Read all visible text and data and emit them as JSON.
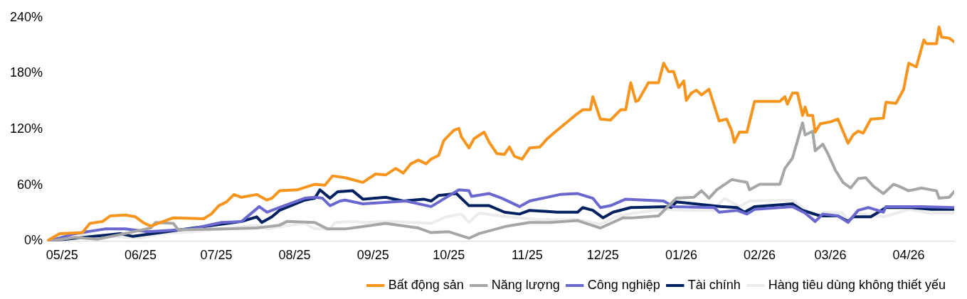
{
  "chart_data": {
    "type": "line",
    "xlim": [
      "2025-04-25",
      "2026-04-19"
    ],
    "xticks": [
      {
        "value": "2025-05",
        "label": "05/25"
      },
      {
        "value": "2025-06",
        "label": "06/25"
      },
      {
        "value": "2025-07",
        "label": "07/25"
      },
      {
        "value": "2025-08",
        "label": "08/25"
      },
      {
        "value": "2025-09",
        "label": "09/25"
      },
      {
        "value": "2025-10",
        "label": "10/25"
      },
      {
        "value": "2025-11",
        "label": "11/25"
      },
      {
        "value": "2025-12",
        "label": "12/25"
      },
      {
        "value": "2026-01",
        "label": "01/26"
      },
      {
        "value": "2026-02",
        "label": "02/26"
      },
      {
        "value": "2026-03",
        "label": "03/26"
      },
      {
        "value": "2026-04",
        "label": "04/26"
      }
    ],
    "ylim": [
      0,
      240
    ],
    "yticks": [
      {
        "value": 0,
        "label": "0%"
      },
      {
        "value": 60,
        "label": "60%"
      },
      {
        "value": 120,
        "label": "120%"
      },
      {
        "value": 180,
        "label": "180%"
      },
      {
        "value": 240,
        "label": "240%"
      }
    ],
    "grid": false,
    "legend": "bottom",
    "marker": "none",
    "line_style": "solid",
    "series": [
      {
        "name": "Bất động sản",
        "color": "#f7941d",
        "x": [
          "2025-04-25",
          "2025-04-30",
          "2025-05-09",
          "2025-05-12",
          "2025-05-17",
          "2025-05-20",
          "2025-05-26",
          "2025-05-30",
          "2025-06-02",
          "2025-06-05",
          "2025-06-09",
          "2025-06-14",
          "2025-06-26",
          "2025-06-29",
          "2025-07-02",
          "2025-07-05",
          "2025-07-08",
          "2025-07-11",
          "2025-07-17",
          "2025-07-21",
          "2025-07-23",
          "2025-07-26",
          "2025-08-02",
          "2025-08-09",
          "2025-08-13",
          "2025-08-16",
          "2025-08-21",
          "2025-08-28",
          "2025-09-02",
          "2025-09-06",
          "2025-09-10",
          "2025-09-13",
          "2025-09-16",
          "2025-09-19",
          "2025-09-22",
          "2025-09-24",
          "2025-09-27",
          "2025-09-29",
          "2025-10-03",
          "2025-10-05",
          "2025-10-06",
          "2025-10-09",
          "2025-10-11",
          "2025-10-15",
          "2025-10-17",
          "2025-10-20",
          "2025-10-23",
          "2025-10-25",
          "2025-10-27",
          "2025-10-30",
          "2025-11-02",
          "2025-11-06",
          "2025-11-09",
          "2025-11-12",
          "2025-11-16",
          "2025-11-20",
          "2025-11-23",
          "2025-11-26",
          "2025-11-27",
          "2025-11-30",
          "2025-12-04",
          "2025-12-08",
          "2025-12-10",
          "2025-12-12",
          "2025-12-14",
          "2025-12-15",
          "2025-12-19",
          "2025-12-23",
          "2025-12-25",
          "2025-12-27",
          "2025-12-29",
          "2025-12-31",
          "2026-01-02",
          "2026-01-03",
          "2026-01-05",
          "2026-01-07",
          "2026-01-09",
          "2026-01-12",
          "2026-01-16",
          "2026-01-19",
          "2026-01-21",
          "2026-01-22",
          "2026-01-24",
          "2026-01-27",
          "2026-01-30",
          "2026-02-09",
          "2026-02-11",
          "2026-02-12",
          "2026-02-14",
          "2026-02-16",
          "2026-02-18",
          "2026-02-19",
          "2026-02-20",
          "2026-02-22",
          "2026-02-23",
          "2026-02-25",
          "2026-03-01",
          "2026-03-04",
          "2026-03-06",
          "2026-03-08",
          "2026-03-10",
          "2026-03-12",
          "2026-03-14",
          "2026-03-17",
          "2026-03-22",
          "2026-03-23",
          "2026-03-27",
          "2026-03-30",
          "2026-04-01",
          "2026-04-04",
          "2026-04-07",
          "2026-04-08",
          "2026-04-12",
          "2026-04-13",
          "2026-04-14",
          "2026-04-17",
          "2026-04-19"
        ],
        "values": [
          0,
          8,
          9,
          19,
          21,
          27,
          28,
          26,
          20,
          16,
          20,
          25,
          24,
          29,
          38,
          42,
          50,
          47,
          50,
          44,
          46,
          54,
          55,
          61,
          60,
          70,
          68,
          63,
          72,
          71,
          78,
          73,
          83,
          87,
          83,
          88,
          92,
          108,
          119,
          121,
          112,
          100,
          110,
          117,
          106,
          94,
          93,
          101,
          91,
          88,
          100,
          101,
          110,
          117,
          126,
          135,
          141,
          141,
          155,
          131,
          130,
          141,
          141,
          170,
          150,
          151,
          170,
          170,
          191,
          182,
          182,
          165,
          172,
          151,
          159,
          162,
          157,
          163,
          129,
          131,
          118,
          106,
          117,
          117,
          150,
          150,
          155,
          147,
          159,
          159,
          135,
          144,
          135,
          135,
          117,
          126,
          128,
          131,
          118,
          105,
          114,
          118,
          116,
          131,
          132,
          149,
          148,
          163,
          191,
          187,
          216,
          212,
          212,
          230,
          219,
          218,
          214
        ]
      },
      {
        "name": "Năng lượng",
        "color": "#a6a6a6",
        "x": [
          "2025-04-26",
          "2025-05-06",
          "2025-05-15",
          "2025-05-26",
          "2025-06-05",
          "2025-06-07",
          "2025-06-14",
          "2025-06-16",
          "2025-07-05",
          "2025-07-17",
          "2025-07-26",
          "2025-07-29",
          "2025-08-09",
          "2025-08-14",
          "2025-08-21",
          "2025-09-06",
          "2025-09-19",
          "2025-09-24",
          "2025-10-01",
          "2025-10-09",
          "2025-10-13",
          "2025-10-24",
          "2025-11-02",
          "2025-11-10",
          "2025-11-21",
          "2025-11-30",
          "2025-12-09",
          "2025-12-13",
          "2025-12-23",
          "2025-12-30",
          "2026-01-06",
          "2026-01-09",
          "2026-01-12",
          "2026-01-15",
          "2026-01-21",
          "2026-01-27",
          "2026-01-28",
          "2026-02-01",
          "2026-02-09",
          "2026-02-11",
          "2026-02-14",
          "2026-02-18",
          "2026-02-19",
          "2026-02-22",
          "2026-02-23",
          "2026-02-26",
          "2026-02-28",
          "2026-03-03",
          "2026-03-06",
          "2026-03-09",
          "2026-03-12",
          "2026-03-15",
          "2026-03-18",
          "2026-03-22",
          "2026-03-26",
          "2026-03-28",
          "2026-04-01",
          "2026-04-06",
          "2026-04-12",
          "2026-04-13",
          "2026-04-17",
          "2026-04-19"
        ],
        "values": [
          0,
          4,
          2,
          8,
          14,
          20,
          19,
          12,
          13,
          14,
          17,
          21,
          20,
          13,
          13,
          19,
          14,
          9,
          10,
          3,
          8,
          16,
          20,
          20,
          22,
          14,
          25,
          25,
          27,
          46,
          47,
          54,
          46,
          55,
          66,
          63,
          55,
          61,
          61,
          78,
          89,
          127,
          114,
          118,
          97,
          104,
          94,
          76,
          63,
          57,
          67,
          68,
          59,
          51,
          61,
          59,
          54,
          57,
          54,
          46,
          47,
          53
        ]
      },
      {
        "name": "Công nghiệp",
        "color": "#6a67ce",
        "x": [
          "2025-04-26",
          "2025-05-06",
          "2025-05-18",
          "2025-05-26",
          "2025-06-04",
          "2025-06-21",
          "2025-07-03",
          "2025-07-11",
          "2025-07-18",
          "2025-07-21",
          "2025-07-26",
          "2025-08-05",
          "2025-08-09",
          "2025-08-12",
          "2025-08-15",
          "2025-08-19",
          "2025-08-21",
          "2025-08-28",
          "2025-09-14",
          "2025-09-24",
          "2025-10-05",
          "2025-10-09",
          "2025-10-10",
          "2025-10-17",
          "2025-10-22",
          "2025-10-29",
          "2025-11-02",
          "2025-11-14",
          "2025-11-21",
          "2025-11-27",
          "2025-11-30",
          "2025-12-04",
          "2025-12-10",
          "2025-12-25",
          "2025-12-29",
          "2026-01-14",
          "2026-01-16",
          "2026-01-23",
          "2026-01-27",
          "2026-01-30",
          "2026-02-14",
          "2026-02-19",
          "2026-02-23",
          "2026-02-26",
          "2026-03-04",
          "2026-03-08",
          "2026-03-12",
          "2026-03-16",
          "2026-03-22",
          "2026-03-23",
          "2026-04-06",
          "2026-04-19"
        ],
        "values": [
          0,
          8,
          13,
          13,
          10,
          13,
          20,
          21,
          37,
          31,
          36,
          46,
          47,
          46,
          38,
          43,
          44,
          40,
          43,
          37,
          55,
          54,
          48,
          51,
          46,
          37,
          43,
          50,
          51,
          46,
          36,
          38,
          45,
          43,
          37,
          36,
          31,
          33,
          29,
          34,
          37,
          30,
          21,
          29,
          27,
          20,
          33,
          36,
          31,
          37,
          37,
          36
        ]
      },
      {
        "name": "Tài chính",
        "color": "#002060",
        "x": [
          "2025-04-26",
          "2025-05-06",
          "2025-05-24",
          "2025-05-29",
          "2025-06-22",
          "2025-07-11",
          "2025-07-17",
          "2025-07-19",
          "2025-07-23",
          "2025-07-26",
          "2025-08-05",
          "2025-08-09",
          "2025-08-11",
          "2025-08-15",
          "2025-08-18",
          "2025-08-24",
          "2025-08-28",
          "2025-09-06",
          "2025-09-13",
          "2025-09-21",
          "2025-09-24",
          "2025-09-27",
          "2025-10-04",
          "2025-10-09",
          "2025-10-17",
          "2025-10-23",
          "2025-10-29",
          "2025-11-02",
          "2025-11-13",
          "2025-11-21",
          "2025-11-23",
          "2025-11-27",
          "2025-12-01",
          "2025-12-05",
          "2025-12-12",
          "2025-12-27",
          "2025-12-28",
          "2025-12-30",
          "2026-01-13",
          "2026-01-17",
          "2026-01-23",
          "2026-01-26",
          "2026-01-30",
          "2026-02-14",
          "2026-02-18",
          "2026-02-25",
          "2026-03-04",
          "2026-03-08",
          "2026-03-10",
          "2026-03-17",
          "2026-03-23",
          "2026-04-02",
          "2026-04-10",
          "2026-04-19"
        ],
        "values": [
          0,
          3,
          8,
          5,
          14,
          21,
          26,
          20,
          26,
          33,
          44,
          46,
          55,
          46,
          53,
          54,
          45,
          47,
          43,
          45,
          43,
          49,
          51,
          38,
          38,
          31,
          29,
          33,
          31,
          31,
          36,
          33,
          25,
          31,
          36,
          37,
          36,
          42,
          38,
          37,
          36,
          31,
          37,
          40,
          33,
          27,
          27,
          21,
          26,
          26,
          36,
          36,
          34,
          34
        ]
      },
      {
        "name": "Hàng tiêu dùng không thiết yếu",
        "color": "#ececec",
        "x": [
          "2025-04-26",
          "2025-05-06",
          "2025-06-01",
          "2025-06-09",
          "2025-06-22",
          "2025-07-06",
          "2025-07-17",
          "2025-07-21",
          "2025-07-28",
          "2025-08-05",
          "2025-08-09",
          "2025-08-15",
          "2025-08-17",
          "2025-08-25",
          "2025-08-28",
          "2025-09-09",
          "2025-09-24",
          "2025-09-30",
          "2025-10-06",
          "2025-10-09",
          "2025-10-13",
          "2025-10-24",
          "2025-11-06",
          "2025-11-21",
          "2025-11-30",
          "2025-12-06",
          "2025-12-13",
          "2025-12-25",
          "2026-01-04",
          "2026-01-14",
          "2026-01-18",
          "2026-01-24",
          "2026-01-28",
          "2026-02-14",
          "2026-02-21",
          "2026-02-23",
          "2026-02-26",
          "2026-03-06",
          "2026-03-08",
          "2026-03-11",
          "2026-03-22",
          "2026-04-01",
          "2026-04-09",
          "2026-04-19"
        ],
        "values": [
          0,
          8,
          3,
          8,
          10,
          14,
          17,
          13,
          16,
          19,
          13,
          13,
          20,
          21,
          20,
          21,
          19,
          26,
          29,
          20,
          30,
          26,
          23,
          23,
          18,
          26,
          30,
          34,
          33,
          33,
          46,
          37,
          43,
          44,
          30,
          21,
          31,
          30,
          21,
          30,
          26,
          34,
          30,
          30
        ]
      }
    ]
  }
}
